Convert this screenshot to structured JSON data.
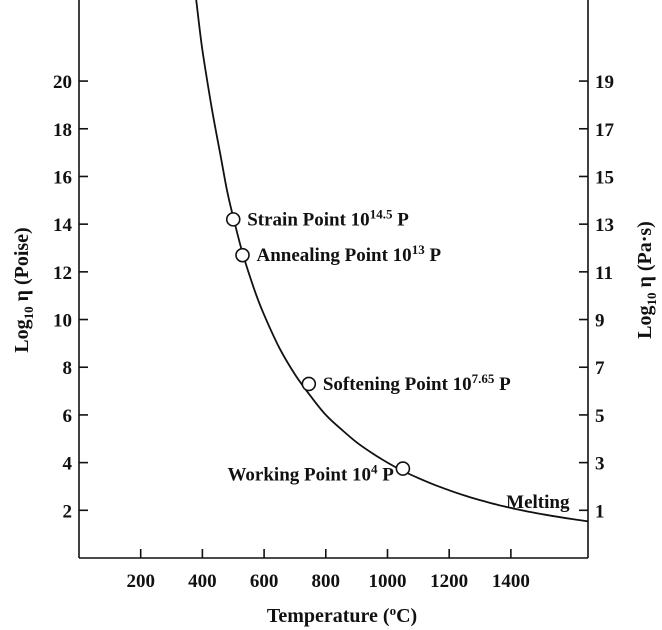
{
  "chart_data": {
    "type": "line",
    "xlabel": "Temperature (",
    "xlabel_unit_sup": "o",
    "xlabel_unit_tail": "C)",
    "ylabel_left_prefix": "Log",
    "ylabel_left_sub": "10",
    "ylabel_left_tail": " η (Poise)",
    "ylabel_right_prefix": "Log",
    "ylabel_right_sub": "10",
    "ylabel_right_tail": " η (Pa·s)",
    "xlim": [
      0,
      1650
    ],
    "ylim": [
      0,
      23.4
    ],
    "x_ticks": [
      200,
      400,
      600,
      800,
      1000,
      1200,
      1400
    ],
    "y_ticks_left": [
      2,
      4,
      6,
      8,
      10,
      12,
      14,
      16,
      18,
      20
    ],
    "y_ticks_right": [
      1,
      3,
      5,
      7,
      9,
      11,
      13,
      15,
      17,
      19
    ],
    "grid": false,
    "series": [
      {
        "x": [
          380,
          400,
          430,
          460,
          480,
          500,
          530,
          570,
          600,
          650,
          700,
          750,
          800,
          850,
          900,
          950,
          1000,
          1050,
          1100,
          1150,
          1200,
          1250,
          1300,
          1350,
          1400,
          1450,
          1500,
          1550,
          1600,
          1650
        ],
        "y": [
          23.4,
          21.3,
          18.9,
          16.8,
          15.4,
          14.3,
          12.8,
          11.2,
          10.2,
          8.8,
          7.7,
          6.8,
          6.0,
          5.4,
          4.85,
          4.4,
          4.0,
          3.65,
          3.35,
          3.08,
          2.84,
          2.62,
          2.43,
          2.25,
          2.1,
          1.96,
          1.84,
          1.73,
          1.63,
          1.54
        ]
      }
    ],
    "points": [
      {
        "x": 500,
        "y": 14.2,
        "label": "Strain Point 10",
        "label_sup": "14.5",
        "label_tail": " P",
        "anchor": "start",
        "dx": 14,
        "dy": 6
      },
      {
        "x": 530,
        "y": 12.7,
        "label": "Annealing Point 10",
        "label_sup": "13",
        "label_tail": " P",
        "anchor": "start",
        "dx": 14,
        "dy": 6
      },
      {
        "x": 745,
        "y": 7.3,
        "label": "Softening Point 10",
        "label_sup": "7.65",
        "label_tail": " P",
        "anchor": "start",
        "dx": 14,
        "dy": 6
      },
      {
        "x": 1050,
        "y": 3.75,
        "label": "Working Point 10",
        "label_sup": "4",
        "label_tail": " P",
        "anchor": "end",
        "dx": -9,
        "dy": 12
      }
    ],
    "annotations": [
      {
        "text": "Melting",
        "x": 1590,
        "y": 2.1,
        "anchor": "end"
      }
    ]
  }
}
